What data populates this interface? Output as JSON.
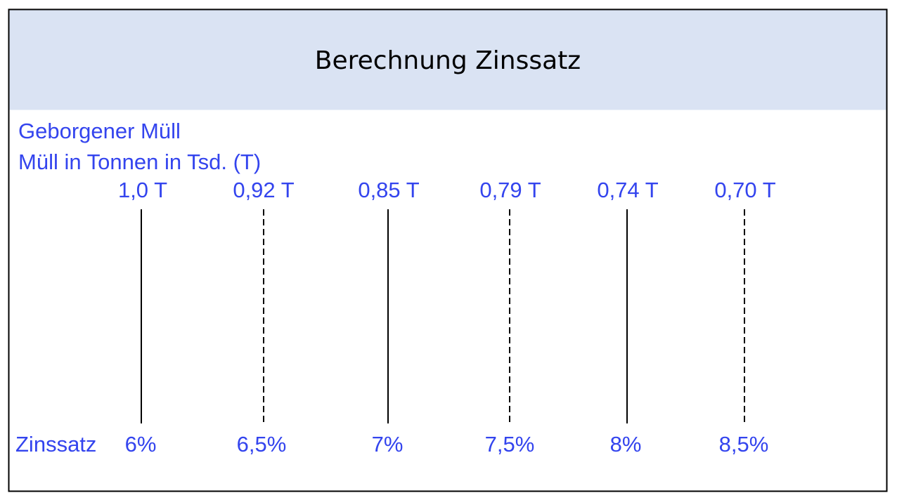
{
  "header": {
    "title": "Berechnung Zinssatz"
  },
  "labels": {
    "top_line1": "Geborgener Müll",
    "top_line2": "Müll in Tonnen in Tsd. (T)",
    "bottom": "Zinssatz"
  },
  "columns": [
    {
      "tonnage": "1,0 T",
      "rate": "6%"
    },
    {
      "tonnage": "0,92 T",
      "rate": "6,5%"
    },
    {
      "tonnage": "0,85 T",
      "rate": "7%"
    },
    {
      "tonnage": "0,79 T",
      "rate": "7,5%"
    },
    {
      "tonnage": "0,74 T",
      "rate": "8%"
    },
    {
      "tonnage": "0,70 T",
      "rate": "8,5%"
    }
  ]
}
